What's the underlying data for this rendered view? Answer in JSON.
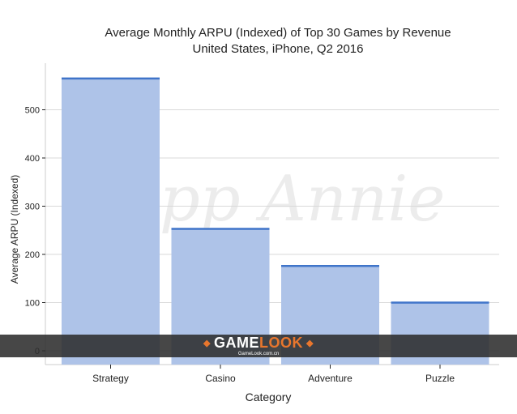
{
  "chart_data": {
    "type": "bar",
    "title": "Average Monthly ARPU (Indexed) of Top 30 Games by Revenue",
    "subtitle": "United States, iPhone, Q2 2016",
    "xlabel": "Category",
    "ylabel": "Average ARPU (Indexed)",
    "categories": [
      "Strategy",
      "Casino",
      "Adventure",
      "Puzzle"
    ],
    "values": [
      565,
      253,
      176,
      100
    ],
    "ylim": [
      0,
      600
    ],
    "yticks": [
      0,
      100,
      200,
      300,
      400,
      500
    ],
    "grid": true,
    "bar_color": "#aec3e8",
    "bar_top_color": "#3f74c9"
  },
  "watermark": {
    "text": "App Annie"
  },
  "banner": {
    "brand_main": "GAME",
    "brand_accent": "LOOK",
    "url": "GameLook.com.cn"
  }
}
